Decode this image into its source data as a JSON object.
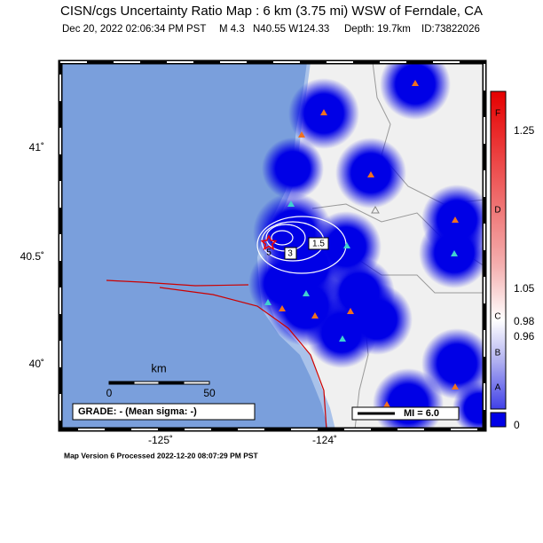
{
  "header": {
    "title": "CISN/cgs Uncertainty Ratio Map : 6 km (3.75 mi) WSW of Ferndale, CA",
    "date": "Dec 20, 2022 02:06:34 PM PST",
    "magnitude": "M 4.3",
    "location": "N40.55 W124.33",
    "depth": "Depth: 19.7km",
    "id": "ID:73822026"
  },
  "map": {
    "lat_labels": [
      "41˚",
      "40.5˚",
      "40˚"
    ],
    "lon_labels": [
      "-125˚",
      "-124˚"
    ],
    "scale_title": "km",
    "scale_labels": [
      "0",
      "50"
    ],
    "grade": "GRADE: - (Mean sigma: -)",
    "mi_legend": "MI = 6.0",
    "contour_labels": [
      "1.5",
      "3",
      "5"
    ]
  },
  "colorbar": {
    "letters": [
      "F",
      "D",
      "C",
      "B",
      "A"
    ],
    "ticks": [
      "1.25",
      "1.05",
      "0.98",
      "0.96",
      "0"
    ]
  },
  "footer": "Map Version 6 Processed 2022-12-20 08:07:29 PM PST"
}
